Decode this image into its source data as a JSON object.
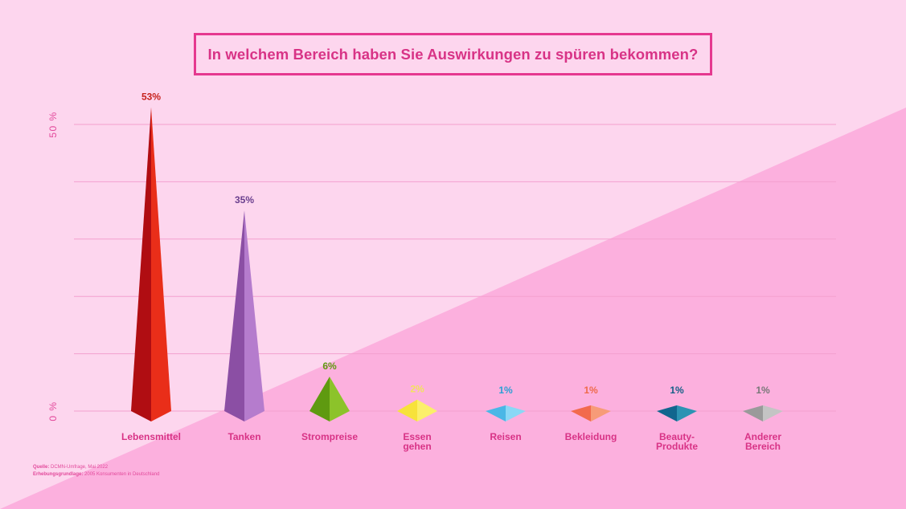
{
  "title": "In welchem Bereich haben Sie Auswirkungen zu spüren bekommen?",
  "source": {
    "label1": "Quelle:",
    "text1": "DCMN-Umfrage, Mai 2022",
    "label2": "Erhebungsgrundlage:",
    "text2": "2005 Konsumenten in Deutschland"
  },
  "colors": {
    "background_light": "#fdd6ee",
    "background_dark": "#fcb0de",
    "accent": "#e5388f"
  },
  "chart_data": {
    "type": "bar",
    "title": "In welchem Bereich haben Sie Auswirkungen zu spüren bekommen?",
    "xlabel": "",
    "ylabel": "",
    "ylim": [
      0,
      50
    ],
    "yticks": [
      "0 %",
      "50 %"
    ],
    "grid": true,
    "categories": [
      [
        "Lebensmittel"
      ],
      [
        "Tanken"
      ],
      [
        "Strompreise"
      ],
      [
        "Essen",
        "gehen"
      ],
      [
        "Reisen"
      ],
      [
        "Bekleidung"
      ],
      [
        "Beauty-",
        "Produkte"
      ],
      [
        "Anderer",
        "Bereich"
      ]
    ],
    "values": [
      53,
      35,
      6,
      2,
      1,
      1,
      1,
      1
    ],
    "data_labels": [
      "53%",
      "35%",
      "6%",
      "2%",
      "1%",
      "1%",
      "1%",
      "1%"
    ],
    "bar_colors": [
      {
        "dark": "#b00d12",
        "light": "#e92e19",
        "label": "#c7221d"
      },
      {
        "dark": "#8b4fa4",
        "light": "#b57ccd",
        "label": "#6a3f8e"
      },
      {
        "dark": "#5f9a10",
        "light": "#8cc32a",
        "label": "#5f9a10"
      },
      {
        "dark": "#f7e23a",
        "light": "#fbef6a",
        "label": "#f2e35a"
      },
      {
        "dark": "#4ab7e6",
        "light": "#8ad8f6",
        "label": "#2b9fd6"
      },
      {
        "dark": "#f26a4d",
        "light": "#f79b78",
        "label": "#ef6a4a"
      },
      {
        "dark": "#11668e",
        "light": "#2c93b3",
        "label": "#115f86"
      },
      {
        "dark": "#9a9a9a",
        "light": "#c4c4c4",
        "label": "#777777"
      }
    ],
    "category_label_color": "#d83386"
  }
}
